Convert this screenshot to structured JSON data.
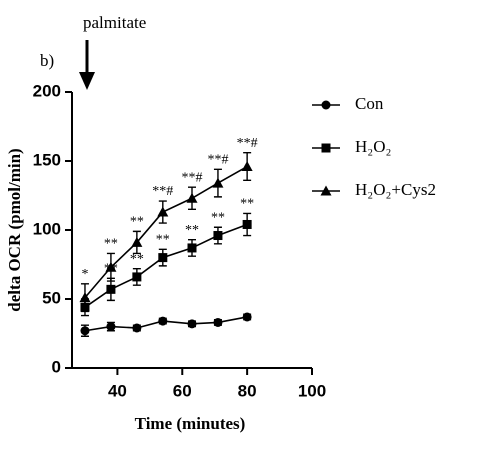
{
  "chart_data": {
    "type": "line",
    "panel_label": "b)",
    "annotation": "palmitate",
    "x_label": "Time (minutes)",
    "y_label": "delta OCR (pmol/min)",
    "x": [
      30,
      38,
      46,
      54,
      63,
      71,
      80
    ],
    "xlim": [
      26,
      100
    ],
    "xticks": [
      40,
      60,
      80,
      100
    ],
    "ylim": [
      0,
      200
    ],
    "yticks": [
      0,
      50,
      100,
      150,
      200
    ],
    "series": [
      {
        "name": "Con",
        "color": "#000000",
        "marker": "circle",
        "values": [
          27,
          30,
          29,
          34,
          32,
          33,
          37
        ],
        "errors": [
          4,
          3,
          2,
          2,
          2,
          2,
          2
        ]
      },
      {
        "name": "H₂O₂",
        "color": "#000000",
        "marker": "square",
        "values": [
          44,
          57,
          66,
          80,
          87,
          96,
          104
        ],
        "errors": [
          6,
          8,
          6,
          6,
          6,
          6,
          8
        ],
        "significance": [
          null,
          "**",
          "**",
          "**",
          "**",
          "**",
          "**"
        ]
      },
      {
        "name": "H₂O₂+Cys2",
        "color": "#000000",
        "marker": "triangle",
        "values": [
          51,
          73,
          91,
          113,
          123,
          134,
          146
        ],
        "errors": [
          10,
          10,
          8,
          8,
          8,
          10,
          10
        ],
        "significance": [
          "*",
          "**",
          "**",
          "**#",
          "**#",
          "**#",
          "**#"
        ]
      }
    ]
  }
}
